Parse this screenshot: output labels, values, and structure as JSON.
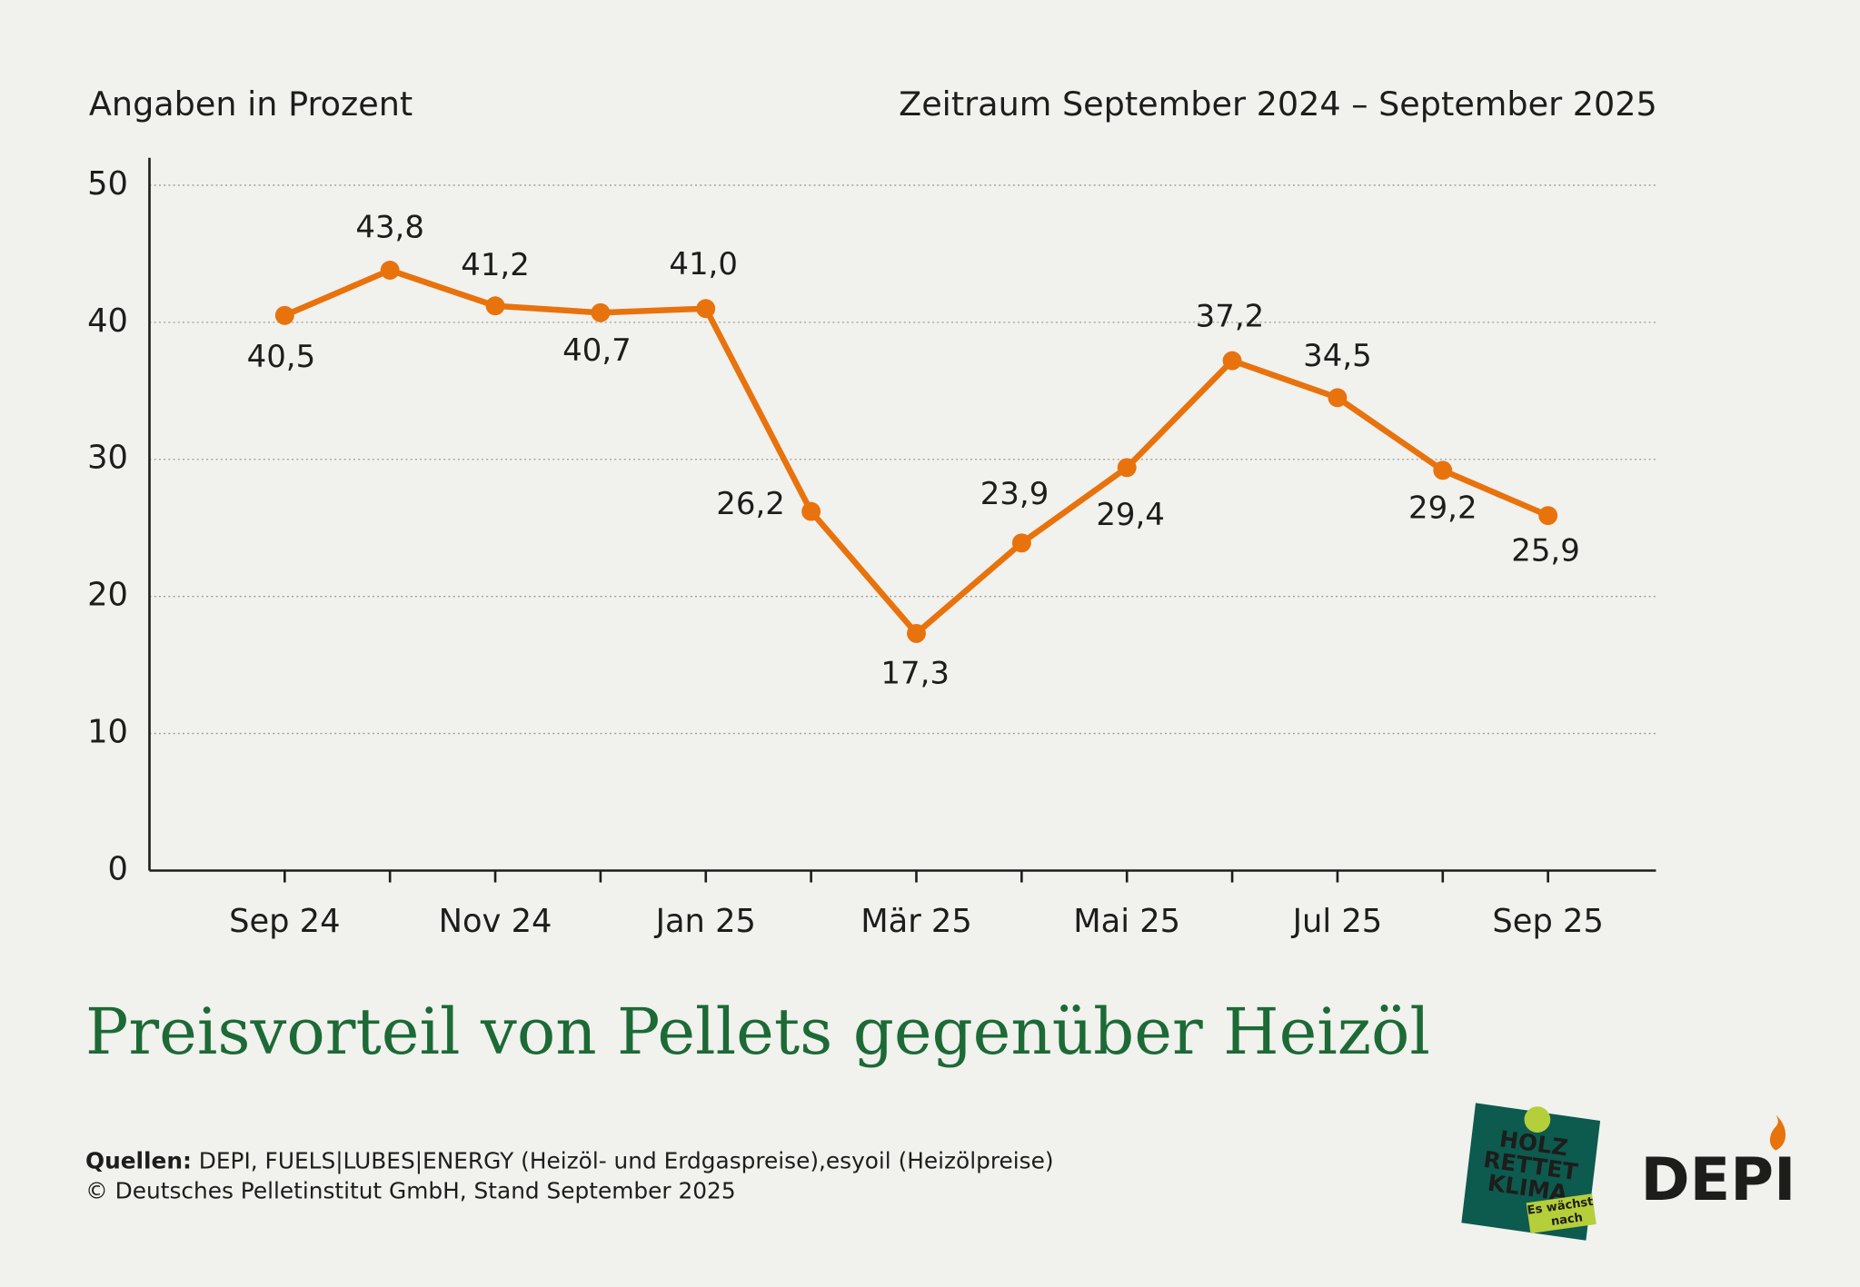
{
  "header": {
    "left": "Angaben in Prozent",
    "right": "Zeitraum September 2024 – September 2025"
  },
  "chart_data": {
    "type": "line",
    "title": "Preisvorteil von Pellets gegenüber Heizöl",
    "categories": [
      "Sep 24",
      null,
      "Nov 24",
      null,
      "Jan 25",
      null,
      "Mär 25",
      null,
      "Mai 25",
      null,
      "Jul 25",
      null,
      "Sep 25"
    ],
    "values": [
      40.5,
      43.8,
      41.2,
      40.7,
      41.0,
      26.2,
      17.3,
      23.9,
      29.4,
      37.2,
      34.5,
      29.2,
      25.9
    ],
    "value_labels": [
      "40,5",
      "43,8",
      "41,2",
      "40,7",
      "41,0",
      "26,2",
      "17,3",
      "23,9",
      "29,4",
      "37,2",
      "34,5",
      "29,2",
      "25,9"
    ],
    "color": "#e8720c",
    "ylim": [
      0,
      52
    ],
    "yticks": [
      0,
      10,
      20,
      30,
      40,
      50
    ],
    "grid": true
  },
  "sources": {
    "label": "Quellen:",
    "text": "DEPI, FUELS|LUBES|ENERGY (Heizöl- und Erdgaspreise),esyoil (Heizölpreise)",
    "copyright": "© Deutsches Pelletinstitut GmbH, Stand September 2025"
  },
  "logos": {
    "holz": [
      "HOLZ",
      "RETTET",
      "KLIMA"
    ],
    "slogan": [
      "Es wächst",
      "nach"
    ],
    "depi": "DEPI"
  }
}
